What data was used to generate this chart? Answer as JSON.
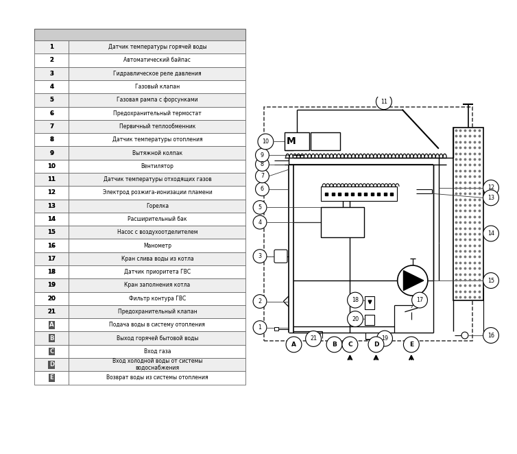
{
  "table_rows": [
    [
      "1",
      "Датчик температуры горячей воды"
    ],
    [
      "2",
      "Автоматический байпас"
    ],
    [
      "3",
      "Гидравлическое реле давления"
    ],
    [
      "4",
      "Газовый клапан"
    ],
    [
      "5",
      "Газовая рампа с форсунками"
    ],
    [
      "6",
      "Предохранительный термостат"
    ],
    [
      "7",
      "Первичный теплообменник"
    ],
    [
      "8",
      "Датчик температуры отопления"
    ],
    [
      "9",
      "Вытяжной колпак"
    ],
    [
      "10",
      "Вентилятор"
    ],
    [
      "11",
      "Датчик температуры отходящих газов"
    ],
    [
      "12",
      "Электрод розжига-ионизации пламени"
    ],
    [
      "13",
      "Горелка"
    ],
    [
      "14",
      "Расширительный бак"
    ],
    [
      "15",
      "Насос с воздухоотделителем"
    ],
    [
      "16",
      "Манометр"
    ],
    [
      "17",
      "Кран слива воды из котла"
    ],
    [
      "18",
      "Датчик приоритета ГВС"
    ],
    [
      "19",
      "Кран заполнения котла"
    ],
    [
      "20",
      "Фильтр контура ГВС"
    ],
    [
      "21",
      "Предохранительный клапан"
    ],
    [
      "A",
      "Подача воды в систему отопления"
    ],
    [
      "B",
      "Выход горячей бытовой воды"
    ],
    [
      "C",
      "Вход газа"
    ],
    [
      "D",
      "Вход холодной воды от системы\nводоснабжения"
    ],
    [
      "E",
      "Возврат воды из системы отопления"
    ]
  ],
  "bg_color": "#ffffff",
  "table_header_color": "#cccccc",
  "table_row_odd": "#eeeeee",
  "table_row_even": "#ffffff",
  "table_border": "#666666",
  "text_color": "#000000"
}
